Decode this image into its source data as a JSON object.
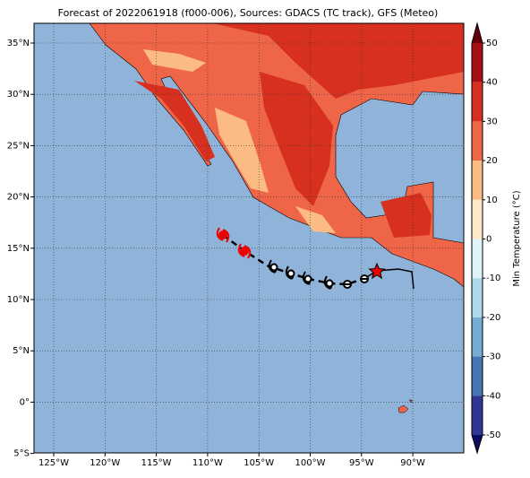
{
  "title": "Forecast of 2022061918 (f000-006), Sources: GDACS (TC track), GFS (Meteo)",
  "lon_labels": [
    "125°W",
    "120°W",
    "115°W",
    "110°W",
    "105°W",
    "100°W",
    "95°W",
    "90°W"
  ],
  "lat_labels": [
    "35°N",
    "30°N",
    "25°N",
    "20°N",
    "15°N",
    "10°N",
    "5°N",
    "0°",
    "5°S"
  ],
  "colorbar": {
    "label": "Min Temperature (°C)",
    "ticks": [
      50,
      40,
      30,
      20,
      10,
      0,
      -10,
      -20,
      -30,
      -40,
      -50
    ],
    "colors": [
      "#a50f15",
      "#d7301f",
      "#ef6548",
      "#fdbb84",
      "#fee8c8",
      "#e0f3f8",
      "#abd9e9",
      "#74add1",
      "#4575b4",
      "#313695"
    ],
    "over_color": "#67000d",
    "under_color": "#0b0b60"
  }
}
